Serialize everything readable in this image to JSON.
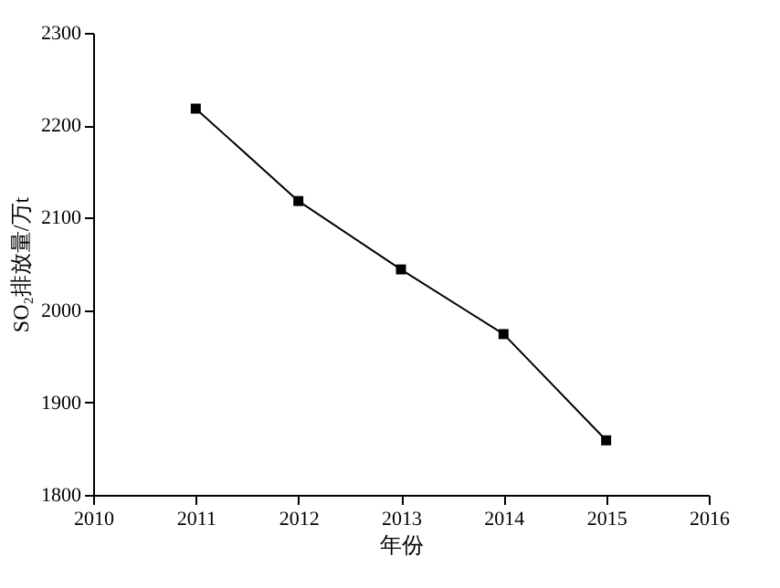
{
  "chart_data": {
    "type": "line",
    "xlabel": "年份",
    "ylabel": "SO₂排放量/万t",
    "x": [
      2011,
      2012,
      2013,
      2014,
      2015
    ],
    "series": [
      {
        "color": "#000000",
        "values": [
          2218,
          2118,
          2044,
          1974,
          1859
        ]
      }
    ],
    "xlim": [
      2010,
      2016
    ],
    "xticks": [
      2010,
      2011,
      2012,
      2013,
      2014,
      2015,
      2016
    ],
    "ylim": [
      1800,
      2300
    ],
    "yticks": [
      1800,
      1900,
      2000,
      2100,
      2200,
      2300
    ],
    "marker": "square",
    "line_style": "solid",
    "grid": false
  }
}
